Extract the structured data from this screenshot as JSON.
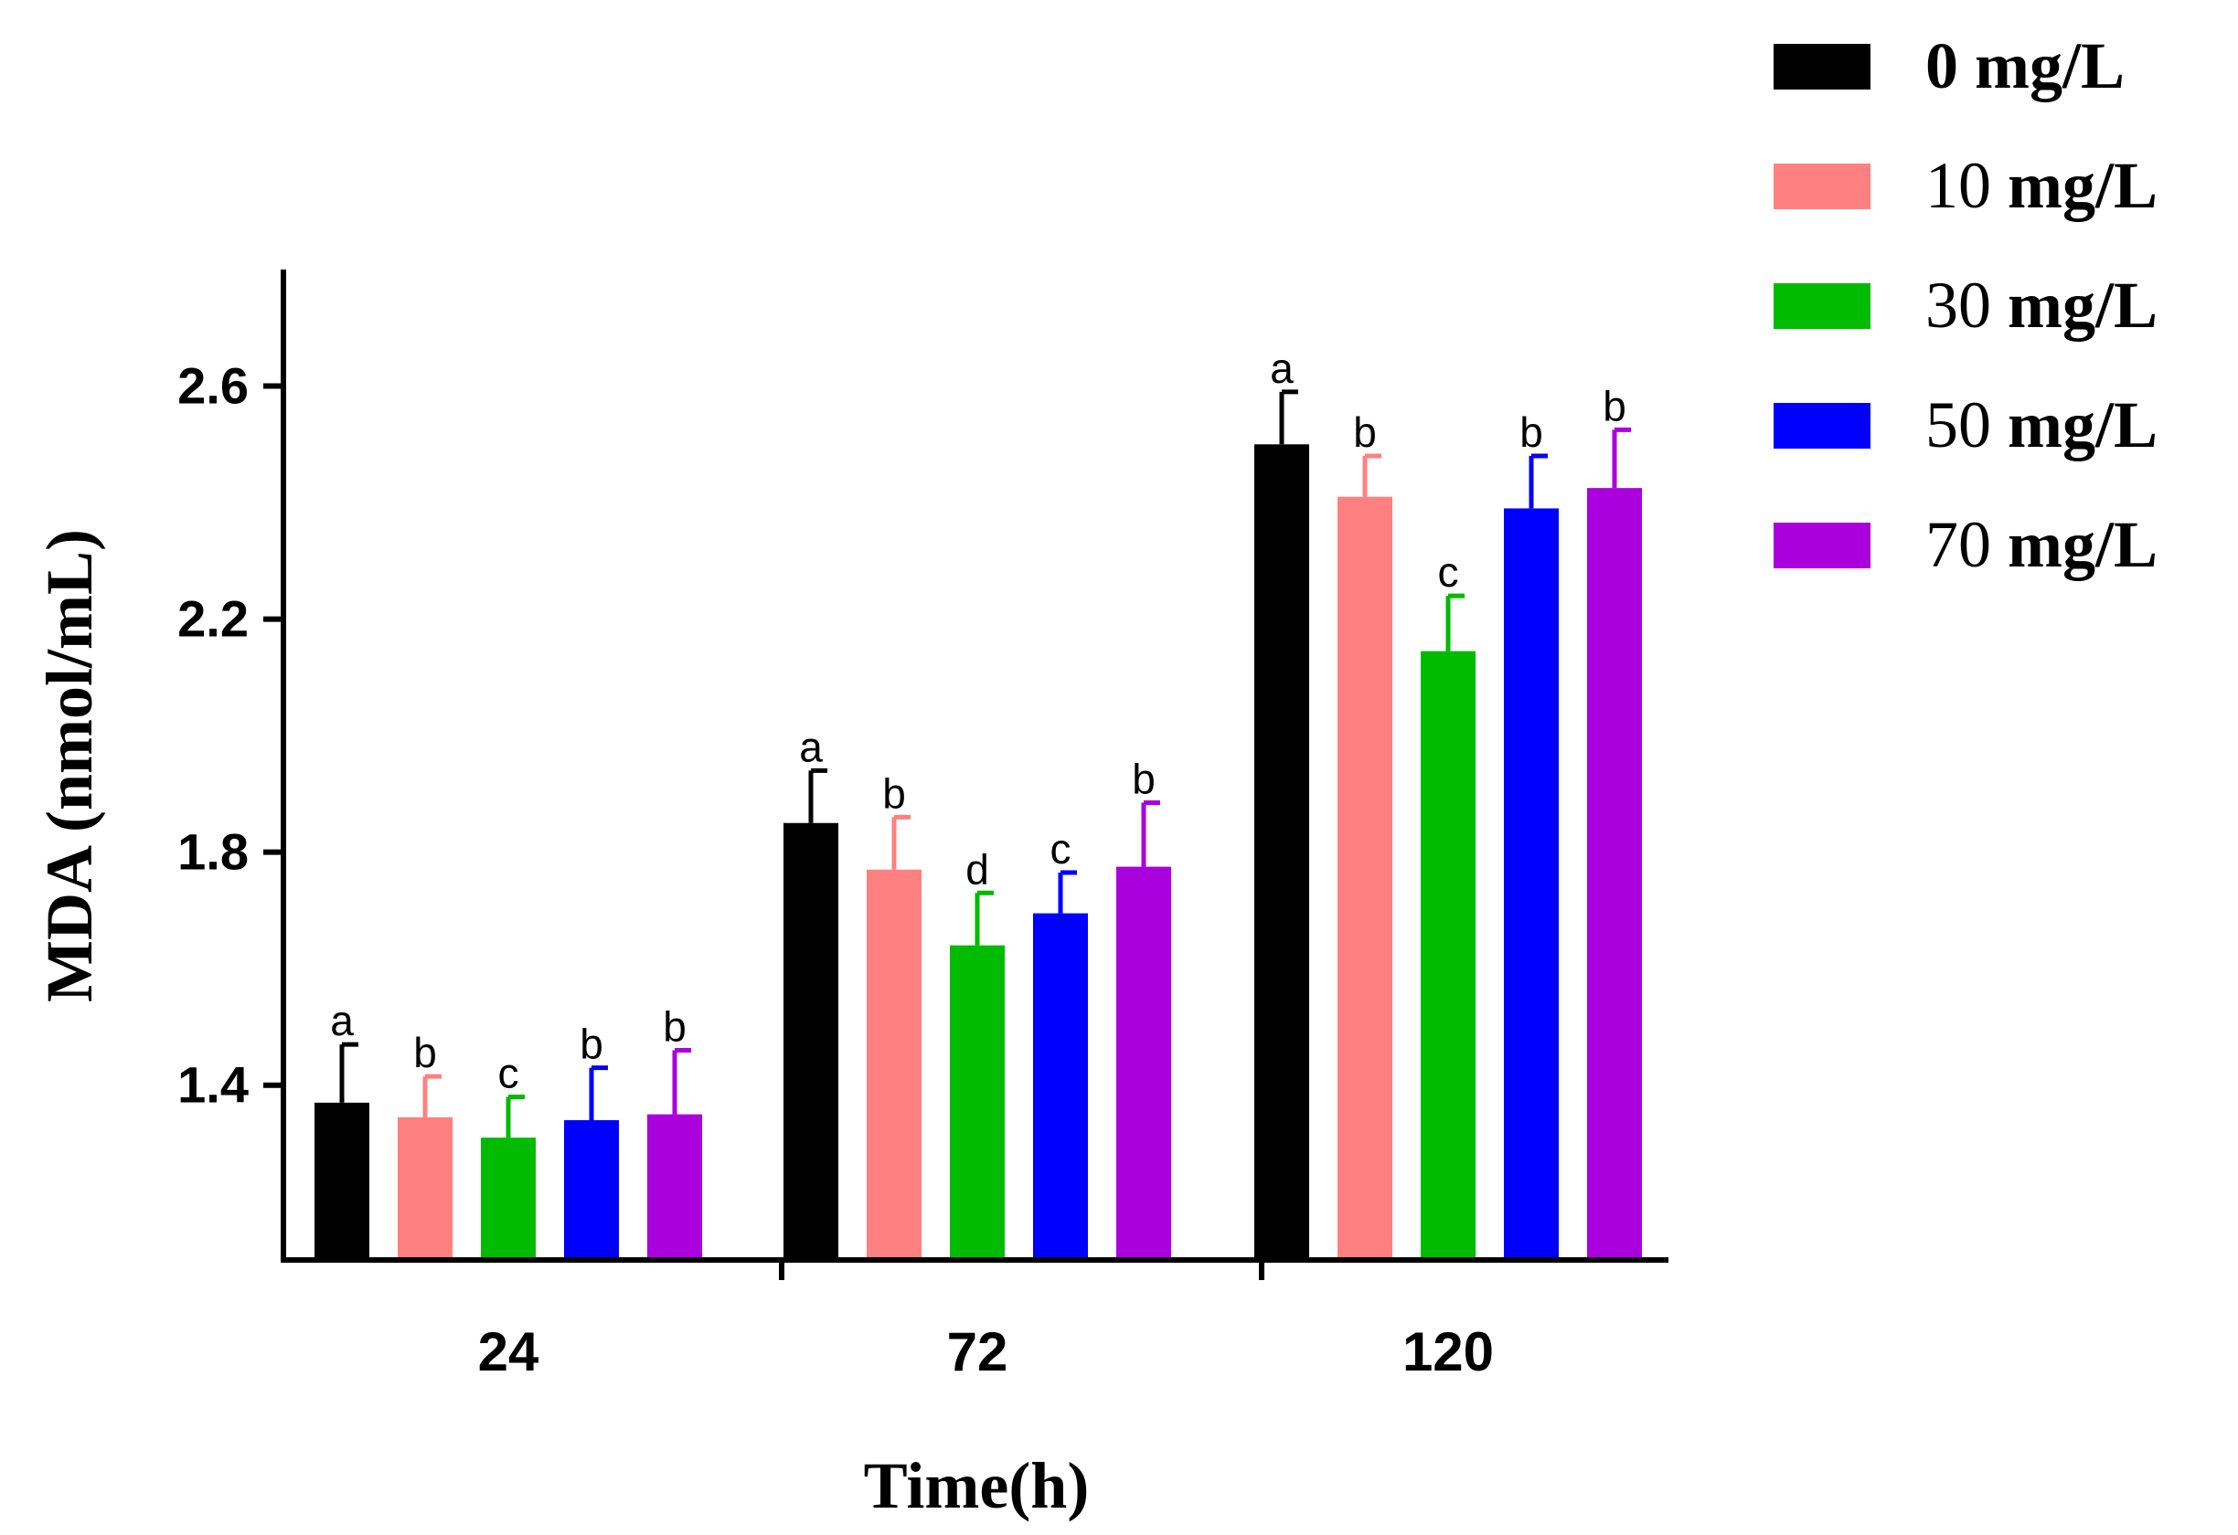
{
  "chart_data": {
    "type": "bar",
    "title": "",
    "xlabel": "Time(h)",
    "ylabel": "MDA (nmol/mL)",
    "categories": [
      "24",
      "72",
      "120"
    ],
    "ylim": [
      1.1,
      2.8
    ],
    "yticks": [
      1.4,
      1.8,
      2.2,
      2.6
    ],
    "ytick_labels": [
      "1.4",
      "1.8",
      "2.2",
      "2.6"
    ],
    "legend_position": "top-right",
    "series": [
      {
        "name": "0 mg/L",
        "num": "0",
        "unit": "mg/L",
        "color": "#000000",
        "values": [
          1.37,
          1.85,
          2.5
        ],
        "errors": [
          0.1,
          0.09,
          0.09
        ],
        "labels": [
          "a",
          "a",
          "a"
        ]
      },
      {
        "name": "10 mg/L",
        "num": "10",
        "unit": "mg/L",
        "color": "#FF8080",
        "values": [
          1.345,
          1.77,
          2.41
        ],
        "errors": [
          0.07,
          0.09,
          0.07
        ],
        "labels": [
          "b",
          "b",
          "b"
        ]
      },
      {
        "name": "30 mg/L",
        "num": "30",
        "unit": "mg/L",
        "color": "#00BB00",
        "values": [
          1.31,
          1.64,
          2.145
        ],
        "errors": [
          0.07,
          0.09,
          0.095
        ],
        "labels": [
          "c",
          "d",
          "c"
        ]
      },
      {
        "name": "50 mg/L",
        "num": "50",
        "unit": "mg/L",
        "color": "#0000FF",
        "values": [
          1.34,
          1.695,
          2.39
        ],
        "errors": [
          0.09,
          0.07,
          0.09
        ],
        "labels": [
          "b",
          "c",
          "b"
        ]
      },
      {
        "name": "70 mg/L",
        "num": "70",
        "unit": "mg/L",
        "color": "#AA00DD",
        "values": [
          1.35,
          1.775,
          2.425
        ],
        "errors": [
          0.11,
          0.11,
          0.1
        ],
        "labels": [
          "b",
          "b",
          "b"
        ]
      }
    ]
  }
}
